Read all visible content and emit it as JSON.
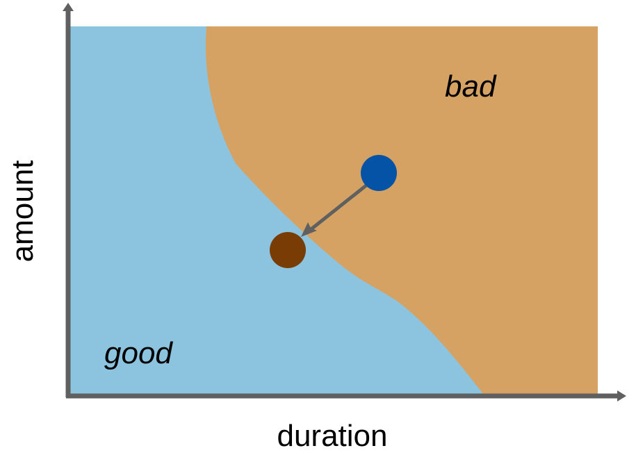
{
  "axes": {
    "x_label": "duration",
    "y_label": "amount"
  },
  "regions": {
    "good_label": "good",
    "bad_label": "bad"
  },
  "colors": {
    "good_region": "#8cc4df",
    "bad_region": "#d6a264",
    "axis": "#606060",
    "start_point": "#0453a6",
    "end_point": "#7a3c05",
    "arrow": "#606060"
  }
}
